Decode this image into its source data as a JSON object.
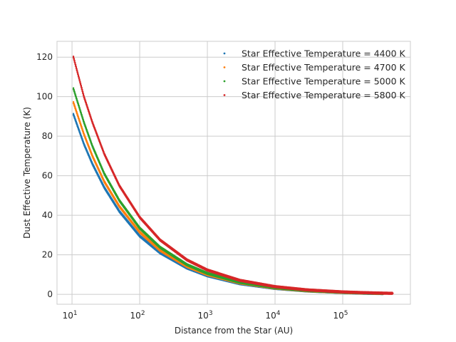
{
  "chart_data": {
    "type": "scatter",
    "xlabel": "Distance from the Star (AU)",
    "ylabel": "Dust Effective Temperature (K)",
    "x_scale": "log",
    "xlim": [
      6,
      1000000
    ],
    "ylim": [
      -5,
      128
    ],
    "x_ticks": [
      {
        "value": 10,
        "base": "10",
        "exp": "1"
      },
      {
        "value": 100,
        "base": "10",
        "exp": "2"
      },
      {
        "value": 1000,
        "base": "10",
        "exp": "3"
      },
      {
        "value": 10000,
        "base": "10",
        "exp": "4"
      },
      {
        "value": 100000,
        "base": "10",
        "exp": "5"
      }
    ],
    "y_ticks": [
      "0",
      "20",
      "40",
      "60",
      "80",
      "100",
      "120"
    ],
    "grid": true,
    "legend_position": "top-right",
    "series": [
      {
        "name": "Star Effective Temperature = 4400 K",
        "color": "#1f77b4",
        "x": [
          10.5,
          15,
          20,
          30,
          50,
          100,
          200,
          500,
          1000,
          3000,
          10000,
          30000,
          100000,
          200000,
          400000
        ],
        "y": [
          91,
          76,
          66,
          54,
          42,
          29.5,
          21,
          13.3,
          9.4,
          5.4,
          3.0,
          1.7,
          0.95,
          0.6,
          0.4
        ]
      },
      {
        "name": "Star Effective Temperature = 4700 K",
        "color": "#ff7f0e",
        "x": [
          10.5,
          15,
          20,
          30,
          50,
          100,
          200,
          500,
          1000,
          3000,
          10000,
          30000,
          100000,
          200000,
          400000
        ],
        "y": [
          97,
          81,
          70,
          57,
          44.5,
          31.5,
          22.3,
          14.1,
          10.0,
          5.8,
          3.2,
          1.8,
          1.0,
          0.7,
          0.45
        ]
      },
      {
        "name": "Star Effective Temperature = 5000 K",
        "color": "#2ca02c",
        "x": [
          10.5,
          15,
          20,
          30,
          50,
          100,
          200,
          500,
          1000,
          3000,
          10000,
          30000,
          100000,
          200000,
          400000
        ],
        "y": [
          104,
          87,
          75,
          61,
          47.5,
          33.5,
          23.8,
          15.0,
          10.6,
          6.1,
          3.4,
          1.95,
          1.07,
          0.75,
          0.5
        ]
      },
      {
        "name": "Star Effective Temperature = 5800 K",
        "color": "#d62728",
        "x": [
          10.5,
          15,
          20,
          30,
          50,
          100,
          200,
          500,
          1000,
          3000,
          10000,
          30000,
          100000,
          200000,
          400000,
          550000
        ],
        "y": [
          120,
          100,
          87,
          71,
          55,
          39,
          27.5,
          17.4,
          12.3,
          7.1,
          3.9,
          2.25,
          1.23,
          0.87,
          0.6,
          0.52
        ]
      }
    ]
  }
}
